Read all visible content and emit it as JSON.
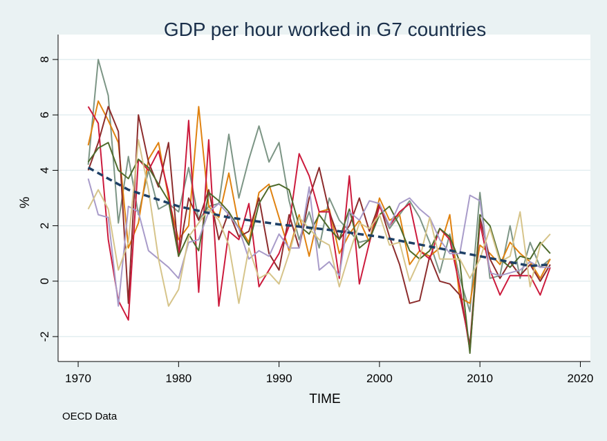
{
  "chart_data": {
    "type": "line",
    "title": "GDP per hour worked in G7 countries",
    "xlabel": "TIME",
    "ylabel": "%",
    "xlim": [
      1968,
      2021
    ],
    "ylim": [
      -2.9,
      8.9
    ],
    "xticks": [
      "1970",
      "1980",
      "1990",
      "2000",
      "2010",
      "2020"
    ],
    "yticks": [
      "-2",
      "0",
      "2",
      "4",
      "6",
      "8"
    ],
    "grid": true,
    "legend": "none",
    "x": [
      1971,
      1972,
      1973,
      1974,
      1975,
      1976,
      1977,
      1978,
      1979,
      1980,
      1981,
      1982,
      1983,
      1984,
      1985,
      1986,
      1987,
      1988,
      1989,
      1990,
      1991,
      1992,
      1993,
      1994,
      1995,
      1996,
      1997,
      1998,
      1999,
      2000,
      2001,
      2002,
      2003,
      2004,
      2005,
      2006,
      2007,
      2008,
      2009,
      2010,
      2011,
      2012,
      2013,
      2014,
      2015,
      2016,
      2017
    ],
    "series": [
      {
        "color": "#7c9585",
        "values": [
          4.2,
          8.0,
          6.7,
          2.1,
          4.5,
          2.4,
          4.0,
          2.6,
          2.8,
          2.5,
          4.1,
          2.2,
          2.7,
          2.8,
          5.3,
          3.0,
          4.4,
          5.6,
          4.3,
          5.0,
          2.9,
          1.5,
          2.5,
          1.2,
          3.0,
          2.2,
          1.8,
          1.4,
          1.5,
          2.8,
          1.9,
          2.4,
          2.9,
          2.3,
          1.4,
          0.3,
          1.7,
          0.1,
          -1.1,
          3.2,
          0.1,
          0.2,
          2.0,
          0.1,
          1.4,
          0.5,
          0.8
        ]
      },
      {
        "color": "#e08210",
        "values": [
          4.9,
          6.5,
          5.8,
          5.0,
          1.2,
          2.1,
          4.4,
          5.0,
          3.0,
          1.5,
          2.0,
          6.3,
          2.7,
          2.3,
          3.9,
          2.0,
          1.4,
          3.2,
          3.5,
          2.3,
          1.1,
          2.4,
          0.9,
          2.5,
          2.6,
          1.0,
          1.7,
          2.2,
          1.4,
          3.0,
          2.2,
          2.4,
          0.6,
          1.1,
          0.9,
          1.2,
          2.4,
          -0.6,
          -0.8,
          1.3,
          1.0,
          0.6,
          1.4,
          1.0,
          0.7,
          0.1,
          0.8
        ]
      },
      {
        "color": "#8c2c2c",
        "values": [
          4.0,
          5.0,
          6.3,
          5.4,
          -0.8,
          6.0,
          4.3,
          3.4,
          5.0,
          0.9,
          3.0,
          2.2,
          3.3,
          1.5,
          2.5,
          1.6,
          1.8,
          3.0,
          1.0,
          0.4,
          2.4,
          1.2,
          3.0,
          4.1,
          2.5,
          1.5,
          2.0,
          3.0,
          1.8,
          2.8,
          1.6,
          0.6,
          -0.8,
          -0.7,
          0.9,
          0.0,
          -0.1,
          -0.5,
          -2.3,
          2.3,
          0.8,
          0.1,
          0.7,
          0.2,
          0.6,
          0.0,
          0.6
        ]
      },
      {
        "color": "#cc1a3c",
        "values": [
          6.3,
          5.7,
          1.5,
          -0.7,
          -1.4,
          4.4,
          4.0,
          4.7,
          3.2,
          0.9,
          5.8,
          -0.4,
          5.1,
          -0.9,
          1.8,
          1.5,
          2.8,
          -0.2,
          0.4,
          1.0,
          2.0,
          4.6,
          3.8,
          2.5,
          2.5,
          0.1,
          3.8,
          -0.1,
          1.4,
          2.7,
          2.0,
          2.5,
          2.8,
          1.1,
          0.8,
          1.9,
          1.5,
          -0.2,
          -2.5,
          2.1,
          0.4,
          -0.5,
          0.2,
          0.2,
          0.2,
          -0.5,
          0.5
        ]
      },
      {
        "color": "#4e6b2c",
        "values": [
          4.3,
          4.8,
          5.0,
          4.0,
          3.7,
          4.4,
          4.1,
          3.5,
          2.9,
          0.9,
          1.7,
          1.1,
          3.2,
          2.9,
          2.5,
          1.9,
          1.3,
          2.8,
          3.4,
          3.5,
          3.3,
          2.0,
          1.7,
          2.4,
          1.9,
          1.5,
          2.6,
          1.2,
          1.5,
          2.4,
          2.7,
          2.0,
          1.1,
          0.8,
          1.1,
          1.9,
          1.6,
          0.7,
          -2.6,
          2.4,
          2.0,
          0.8,
          0.5,
          0.9,
          0.8,
          1.4,
          1.0
        ]
      },
      {
        "color": "#a89bc9",
        "values": [
          3.7,
          2.4,
          2.3,
          -0.9,
          2.7,
          2.5,
          1.1,
          0.8,
          0.5,
          0.1,
          1.4,
          1.5,
          2.5,
          2.8,
          2.4,
          1.9,
          0.8,
          1.1,
          0.9,
          1.7,
          1.2,
          1.2,
          3.4,
          0.4,
          0.7,
          0.2,
          2.5,
          2.2,
          2.9,
          2.8,
          2.0,
          2.8,
          3.0,
          2.6,
          2.3,
          1.5,
          1.0,
          1.0,
          3.1,
          2.9,
          0.3,
          0.2,
          0.3,
          0.4,
          0.7,
          0.5,
          0.5
        ]
      },
      {
        "color": "#d6c48a",
        "values": [
          2.6,
          3.3,
          2.6,
          0.4,
          1.4,
          5.1,
          3.3,
          0.8,
          -0.9,
          -0.3,
          1.6,
          2.1,
          2.6,
          2.2,
          1.3,
          -0.8,
          1.2,
          0.1,
          0.3,
          -0.1,
          1.0,
          2.3,
          1.9,
          1.5,
          1.3,
          -0.2,
          1.0,
          2.1,
          1.9,
          2.4,
          1.3,
          1.4,
          0.0,
          0.8,
          2.3,
          0.8,
          0.8,
          0.8,
          0.1,
          0.8,
          1.9,
          0.7,
          0.9,
          2.5,
          -0.2,
          1.3,
          1.7
        ]
      }
    ],
    "trend": {
      "color": "#1e4066",
      "x": [
        1971,
        1975,
        1980,
        1985,
        1990,
        1995,
        2000,
        2005,
        2010,
        2015,
        2017
      ],
      "values": [
        4.1,
        3.3,
        2.7,
        2.3,
        2.05,
        1.85,
        1.6,
        1.25,
        0.9,
        0.55,
        0.6
      ]
    }
  },
  "source_note": "OECD Data"
}
